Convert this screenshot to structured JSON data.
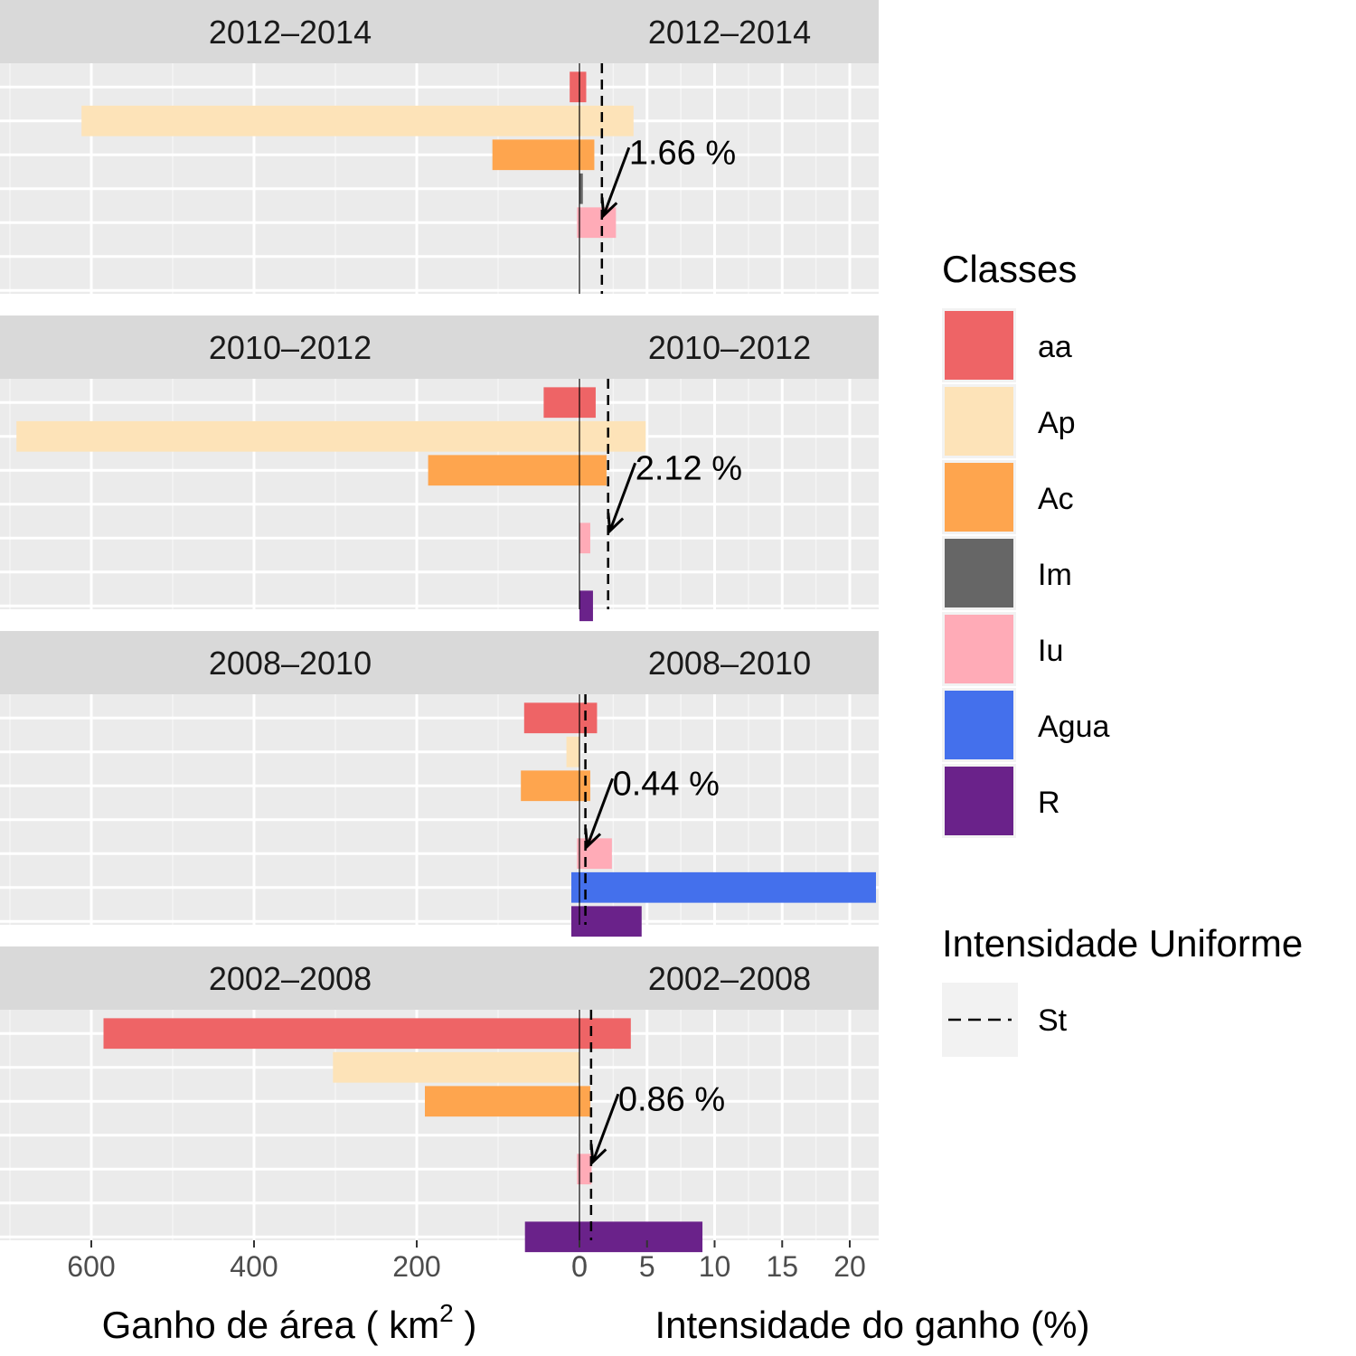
{
  "chart_data": {
    "type": "bar",
    "description_free": true,
    "x_left_label": "Ganho de área ( km",
    "x_left_label_sup": "2",
    "x_left_label_end": " )",
    "x_right_label": "Intensidade do ganho (%)",
    "left_ticks": [
      600,
      400,
      200,
      0
    ],
    "right_ticks": [
      0,
      5,
      10,
      15,
      20
    ],
    "left_xlim": [
      700,
      0
    ],
    "right_xlim": [
      0,
      22
    ],
    "classes": [
      "aa",
      "Ap",
      "Ac",
      "Im",
      "Iu",
      "Agua",
      "R"
    ],
    "class_colors": {
      "aa": "#ee6466",
      "Ap": "#fde3b8",
      "Ac": "#fea54e",
      "Im": "#666666",
      "Iu": "#ffabb7",
      "Agua": "#4470ec",
      "R": "#6a228a"
    },
    "panels": [
      {
        "period": "2012–2014",
        "uniform_intensity": 1.66,
        "uniform_label": "1.66 %",
        "area_gain_km2": {
          "aa": 12,
          "Ap": 612,
          "Ac": 107,
          "Im": 0,
          "Iu": 3,
          "Agua": 0,
          "R": 0
        },
        "intensity_pct": {
          "aa": 0.5,
          "Ap": 4.0,
          "Ac": 1.1,
          "Im": 0.25,
          "Iu": 2.7,
          "Agua": 0,
          "R": 0
        }
      },
      {
        "period": "2010–2012",
        "uniform_intensity": 2.12,
        "uniform_label": "2.12 %",
        "area_gain_km2": {
          "aa": 44,
          "Ap": 692,
          "Ac": 186,
          "Im": 0,
          "Iu": 0,
          "Agua": 0,
          "R": 0
        },
        "intensity_pct": {
          "aa": 1.2,
          "Ap": 4.9,
          "Ac": 2.0,
          "Im": 0,
          "Iu": 0.8,
          "Agua": 0,
          "R": 1.0
        }
      },
      {
        "period": "2008–2010",
        "uniform_intensity": 0.44,
        "uniform_label": "0.44 %",
        "area_gain_km2": {
          "aa": 68,
          "Ap": 16,
          "Ac": 72,
          "Im": 0,
          "Iu": 3,
          "Agua": 10,
          "R": 10
        },
        "intensity_pct": {
          "aa": 1.3,
          "Ap": 0,
          "Ac": 0.8,
          "Im": 0,
          "Iu": 2.4,
          "Agua": 22.5,
          "R": 4.6
        }
      },
      {
        "period": "2002–2008",
        "uniform_intensity": 0.86,
        "uniform_label": "0.86 %",
        "area_gain_km2": {
          "aa": 585,
          "Ap": 303,
          "Ac": 190,
          "Im": 0,
          "Iu": 3,
          "Agua": 0,
          "R": 67
        },
        "intensity_pct": {
          "aa": 3.8,
          "Ap": 0,
          "Ac": 0.8,
          "Im": 0,
          "Iu": 0.9,
          "Agua": 0,
          "R": 9.1
        }
      }
    ],
    "legend": {
      "classes_title": "Classes",
      "linetype_title": "Intensidade Uniforme",
      "linetype_label": "St"
    }
  }
}
